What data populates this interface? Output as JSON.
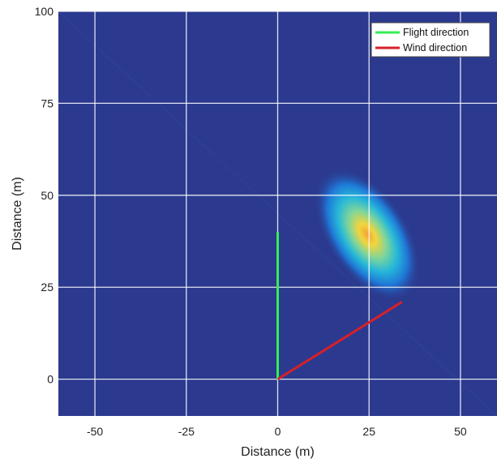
{
  "chart_data": {
    "type": "heatmap",
    "title": "",
    "xlabel": "Distance (m)",
    "ylabel": "Distance (m)",
    "xlim": [
      -60,
      60
    ],
    "ylim": [
      -10,
      100
    ],
    "xticks": [
      -50,
      -25,
      0,
      25,
      50
    ],
    "yticks": [
      0,
      25,
      50,
      75,
      100
    ],
    "grid": true,
    "legend_position": "top-right",
    "background_color": "#2b3a8f",
    "plume": {
      "peak_x": 25,
      "peak_y": 40,
      "colormap": [
        "#2b3a8f",
        "#1f77d6",
        "#26b7d9",
        "#7fd59a",
        "#f2d53c",
        "#f2a23a"
      ]
    },
    "series": [
      {
        "name": "Flight direction",
        "color": "#33ee55",
        "x": [
          0,
          0
        ],
        "y": [
          0,
          40
        ]
      },
      {
        "name": "Wind direction",
        "color": "#d81f2a",
        "x": [
          0,
          34
        ],
        "y": [
          0,
          21
        ]
      }
    ]
  }
}
